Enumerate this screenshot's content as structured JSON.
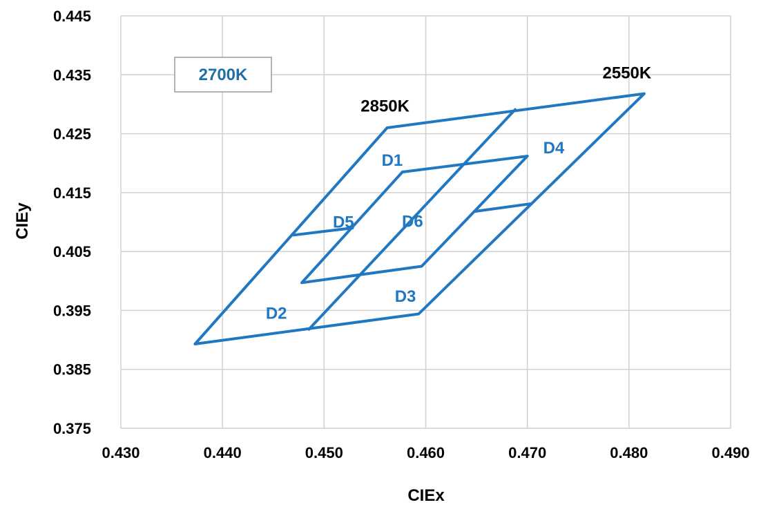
{
  "colors": {
    "series": "#1f78c1",
    "legend_text": "#1f6fa8",
    "grid": "#d0d0d0"
  },
  "chart_data": {
    "type": "line",
    "title": "",
    "xlabel": "CIEx",
    "ylabel": "CIEy",
    "xlim": [
      0.43,
      0.49
    ],
    "ylim": [
      0.375,
      0.445
    ],
    "grid": true,
    "x_ticks": [
      "0.430",
      "0.440",
      "0.450",
      "0.460",
      "0.470",
      "0.480",
      "0.490"
    ],
    "y_ticks": [
      "0.445",
      "0.435",
      "0.425",
      "0.415",
      "0.405",
      "0.395",
      "0.385",
      "0.375"
    ],
    "legend": {
      "text": "2700K",
      "placement": "top-left"
    },
    "series": [
      {
        "points": [
          [
            0.4562,
            0.426
          ],
          [
            0.4815,
            0.4318
          ],
          [
            0.4593,
            0.3944
          ],
          [
            0.4373,
            0.3893
          ],
          [
            0.4562,
            0.426
          ]
        ]
      },
      {
        "points": [
          [
            0.4577,
            0.4185
          ],
          [
            0.47,
            0.4212
          ],
          [
            0.4596,
            0.4025
          ],
          [
            0.4478,
            0.3997
          ],
          [
            0.4577,
            0.4185
          ]
        ]
      },
      {
        "points": [
          [
            0.4688,
            0.4291
          ],
          [
            0.4485,
            0.3918
          ]
        ]
      },
      {
        "points": [
          [
            0.447,
            0.4078
          ],
          [
            0.4528,
            0.409
          ]
        ]
      },
      {
        "points": [
          [
            0.4648,
            0.4118
          ],
          [
            0.4703,
            0.4131
          ]
        ]
      }
    ],
    "annotations": [
      {
        "text": "2850K",
        "x": 0.456,
        "y": 0.4297,
        "kind": "cct"
      },
      {
        "text": "2550K",
        "x": 0.4798,
        "y": 0.4353,
        "kind": "cct"
      },
      {
        "text": "D1",
        "x": 0.4567,
        "y": 0.4205,
        "kind": "region"
      },
      {
        "text": "D4",
        "x": 0.4726,
        "y": 0.4226,
        "kind": "region"
      },
      {
        "text": "D5",
        "x": 0.4519,
        "y": 0.41,
        "kind": "region"
      },
      {
        "text": "D6",
        "x": 0.4587,
        "y": 0.4101,
        "kind": "region"
      },
      {
        "text": "D3",
        "x": 0.458,
        "y": 0.3974,
        "kind": "region"
      },
      {
        "text": "D2",
        "x": 0.4453,
        "y": 0.3945,
        "kind": "region"
      }
    ]
  }
}
